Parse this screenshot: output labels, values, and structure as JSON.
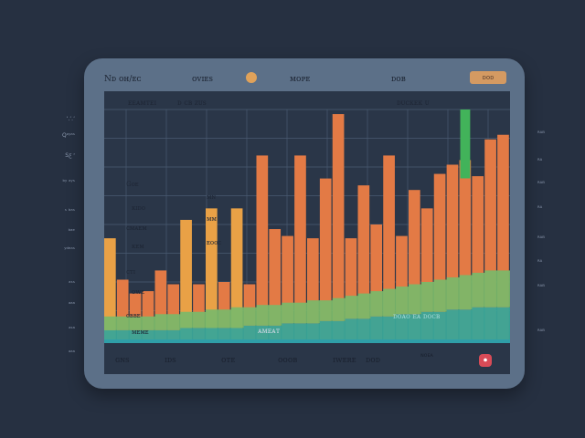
{
  "side_labels_left": [
    "ʻ.ʼ.ʼ",
    "Qᵒʸᵃˢ",
    "Sƹ ʳ",
    "ᵇʸ ᵃʸˢ",
    "ˢ ᵇᵃˢ",
    "ᵇᵃᵉ",
    "ʸᵈᵉᵃˢ",
    "ᵃˢˢ",
    "ᵃᵃᵃ",
    "ᵃˢᵃ",
    "ᵃᵃᵃ"
  ],
  "side_labels_right": [
    "ᴿᴬᴮ",
    "ᴿᴬ",
    "ᴿᴬᴮ",
    "ᴿᴬ",
    "ᴿᴬᴮ",
    "ᴿᴬ",
    "ᴿᴬᴮ",
    "ᴿᴬᴮ"
  ],
  "topbar": {
    "label_1": "Nᴅ ᴏʜ/ᴇᴄ",
    "label_2": "ᴏᴠɪᴇs",
    "label_3": "ᴍᴏᴘᴇ",
    "label_4": "ᴅᴏʙ",
    "button_label": "ᴅᴏᴅ"
  },
  "chart_header": {
    "left": "ᴇᴇᴀᴍᴛᴇɪ",
    "mid": "ᴅ ᴄʙ ᴢᴜs",
    "right": "ᴅᴜᴄᴋᴇᴋ ᴜ"
  },
  "left_column_labels": [
    "Gᴏᴇ",
    "ᴋɪᴅᴏ",
    "ᴄᴍᴀᴇᴍ",
    "ᴋᴇᴍ",
    "ᴄᴛɪ",
    "ᴏᴡᴇ",
    "ᴄʙʙᴇ",
    "ᴍᴇᴍᴇ"
  ],
  "chart_inner_labels": [
    "ᴍɴ",
    "ᴍᴍ",
    "ᴇᴏᴏᴄ"
  ],
  "chart_footer_left": "ᴀᴍᴇᴀᴛ",
  "chart_footer_right": "ᴅᴏᴀᴏ ᴇᴀ ᴅᴏᴄʙ",
  "bottombar": {
    "label_1": "ɢɴs",
    "label_2": "ɪᴅs",
    "label_3": "ᴏᴛᴇ",
    "label_4": "ᴏᴏᴏʙ",
    "label_5": "ɪᴡᴇʀᴇ",
    "label_6": "ᴅᴏᴅ",
    "label_7": "ɴᴏᴇᴀ"
  },
  "colors": {
    "orange": "#e37a45",
    "orange_light": "#e9a146",
    "yellow": "#e2a840",
    "green": "#7ab86a",
    "teal": "#3aa598",
    "cyan": "#2f9fa8",
    "bright_green": "#42b35a",
    "grid": "#4a5b72"
  },
  "chart_data": {
    "type": "bar",
    "bars": [
      {
        "value": 44,
        "color": "yellow"
      },
      {
        "value": 26,
        "color": "orange"
      },
      {
        "value": 20,
        "color": "orange"
      },
      {
        "value": 21,
        "color": "orange"
      },
      {
        "value": 30,
        "color": "orange"
      },
      {
        "value": 24,
        "color": "orange"
      },
      {
        "value": 52,
        "color": "yellow"
      },
      {
        "value": 24,
        "color": "orange"
      },
      {
        "value": 57,
        "color": "yellow"
      },
      {
        "value": 25,
        "color": "orange"
      },
      {
        "value": 57,
        "color": "yellow"
      },
      {
        "value": 24,
        "color": "orange"
      },
      {
        "value": 80,
        "color": "orange"
      },
      {
        "value": 48,
        "color": "orange"
      },
      {
        "value": 45,
        "color": "orange"
      },
      {
        "value": 80,
        "color": "orange"
      },
      {
        "value": 44,
        "color": "orange"
      },
      {
        "value": 70,
        "color": "orange"
      },
      {
        "value": 98,
        "color": "orange"
      },
      {
        "value": 44,
        "color": "orange"
      },
      {
        "value": 67,
        "color": "orange"
      },
      {
        "value": 50,
        "color": "orange"
      },
      {
        "value": 80,
        "color": "orange"
      },
      {
        "value": 45,
        "color": "orange"
      },
      {
        "value": 65,
        "color": "orange"
      },
      {
        "value": 57,
        "color": "orange"
      },
      {
        "value": 72,
        "color": "orange"
      },
      {
        "value": 76,
        "color": "orange"
      },
      {
        "value": 78,
        "color": "orange"
      },
      {
        "value": 71,
        "color": "orange"
      },
      {
        "value": 87,
        "color": "orange"
      },
      {
        "value": 89,
        "color": "orange"
      }
    ],
    "band_values": {
      "green": [
        10,
        10,
        10,
        10,
        11,
        11,
        12,
        12,
        13,
        13,
        14,
        14,
        15,
        15,
        16,
        16,
        17,
        17,
        18,
        19,
        20,
        21,
        22,
        23,
        24,
        25,
        26,
        27,
        28,
        29,
        30,
        30
      ],
      "teal": [
        4,
        4,
        4,
        4,
        4,
        4,
        5,
        5,
        5,
        5,
        5,
        6,
        6,
        6,
        7,
        7,
        7,
        8,
        8,
        9,
        9,
        10,
        10,
        11,
        11,
        12,
        12,
        13,
        13,
        14,
        14,
        14
      ]
    },
    "highlight_bar": {
      "index": 28,
      "value": 100,
      "color": "bright_green"
    },
    "ylim": [
      0,
      100
    ]
  }
}
